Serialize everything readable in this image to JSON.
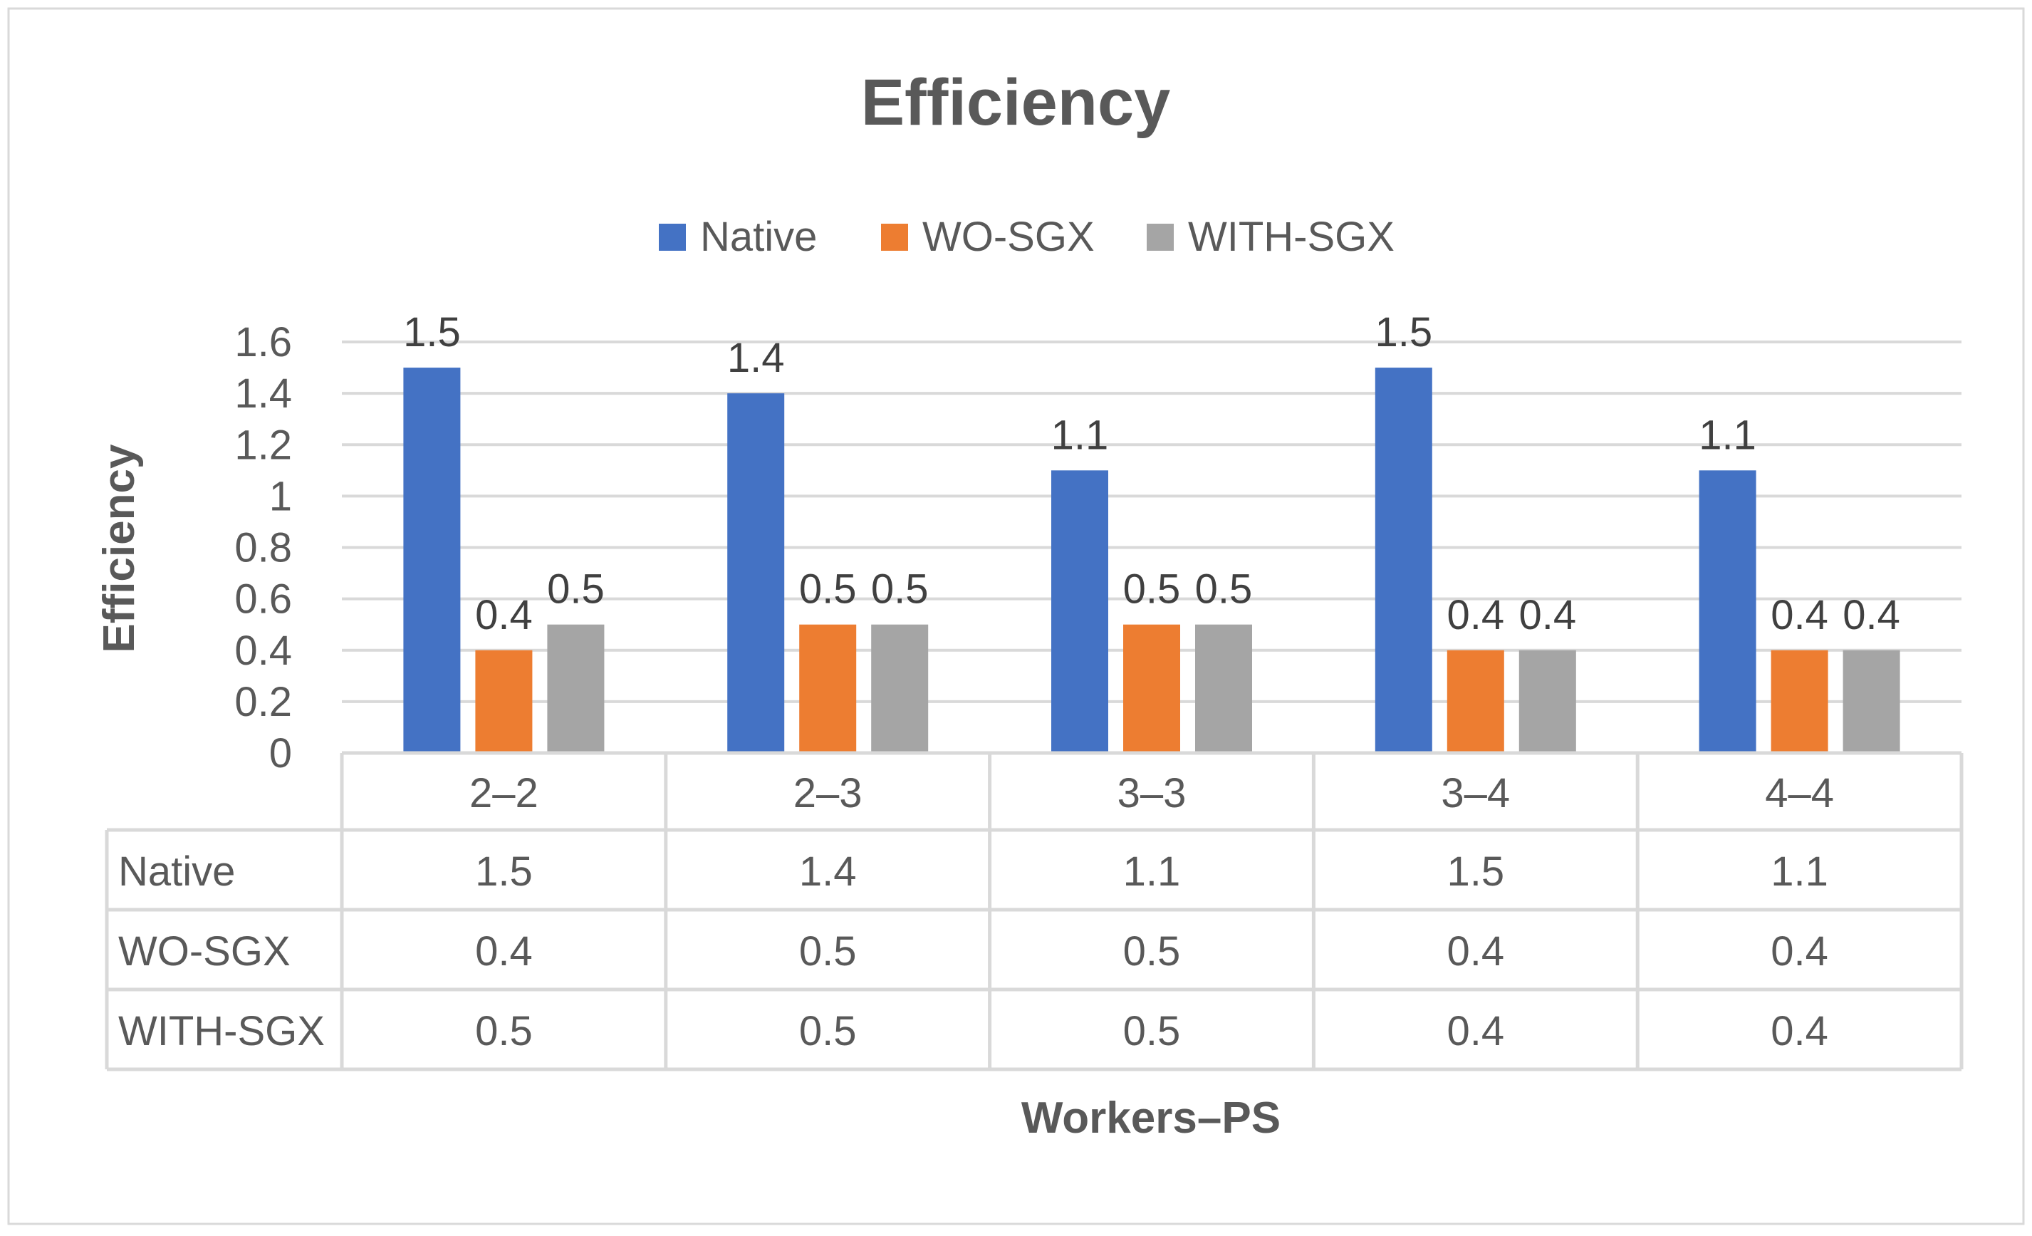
{
  "chart_data": {
    "type": "bar",
    "title": "Efficiency",
    "xlabel": "Workers–PS",
    "ylabel": "Efficiency",
    "ylim": [
      0,
      1.6
    ],
    "yticks": [
      "0",
      "0.2",
      "0.4",
      "0.6",
      "0.8",
      "1",
      "1.2",
      "1.4",
      "1.6"
    ],
    "grid": true,
    "legend_position": "top",
    "categories": [
      "2–2",
      "2–3",
      "3–3",
      "3–4",
      "4–4"
    ],
    "series": [
      {
        "name": "Native",
        "color": "#4472C4",
        "values": [
          1.5,
          1.4,
          1.1,
          1.5,
          1.1
        ]
      },
      {
        "name": "WO-SGX",
        "color": "#ED7D31",
        "values": [
          0.4,
          0.5,
          0.5,
          0.4,
          0.4
        ]
      },
      {
        "name": "WITH-SGX",
        "color": "#A5A5A5",
        "values": [
          0.5,
          0.5,
          0.5,
          0.4,
          0.4
        ]
      }
    ],
    "data_table": {
      "rows": [
        {
          "label": "Native",
          "values": [
            "1.5",
            "1.4",
            "1.1",
            "1.5",
            "1.1"
          ]
        },
        {
          "label": "WO-SGX",
          "values": [
            "0.4",
            "0.5",
            "0.5",
            "0.4",
            "0.4"
          ]
        },
        {
          "label": "WITH-SGX",
          "values": [
            "0.5",
            "0.5",
            "0.5",
            "0.4",
            "0.4"
          ]
        }
      ]
    }
  }
}
